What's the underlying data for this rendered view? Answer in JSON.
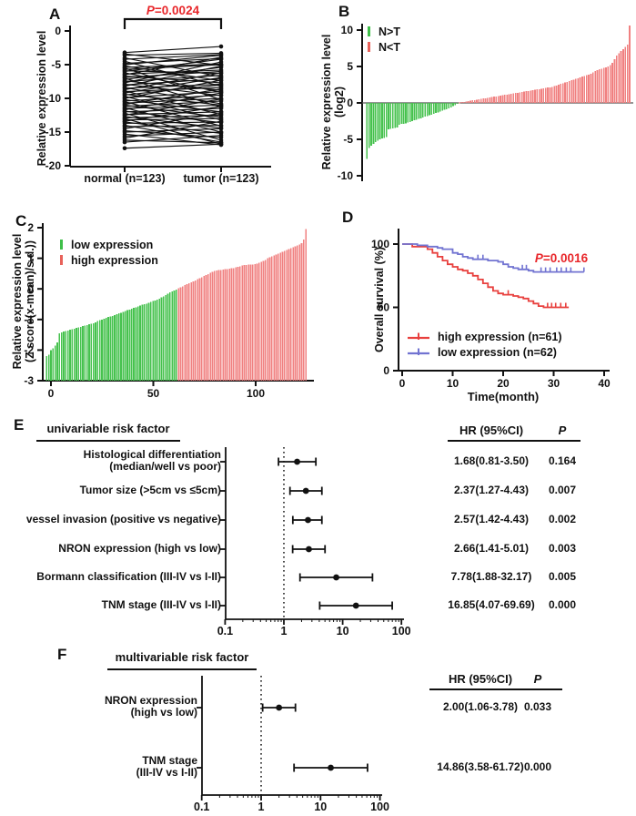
{
  "chart_data": [
    {
      "panel": "A",
      "type": "paired-line",
      "p_italic": "P",
      "p_value": "=0.0024",
      "p_color": "#e8262a",
      "ylabel": "Relative expression level",
      "ylim": [
        -20,
        0
      ],
      "yticks": [
        0,
        -5,
        -10,
        -15,
        -20
      ],
      "categories": [
        "normal (n=123)",
        "tumor (n=123)"
      ],
      "point_color": "#111111",
      "pairs": [
        [
          -3.2,
          -2.3
        ],
        [
          -3.4,
          -5.1
        ],
        [
          -3.6,
          -3.3
        ],
        [
          -4.0,
          -6.8
        ],
        [
          -4.2,
          -3.5
        ],
        [
          -4.5,
          -8.2
        ],
        [
          -4.8,
          -4.1
        ],
        [
          -5.0,
          -3.6
        ],
        [
          -5.2,
          -7.4
        ],
        [
          -5.4,
          -4.9
        ],
        [
          -5.5,
          -10.2
        ],
        [
          -5.7,
          -5.0
        ],
        [
          -5.9,
          -6.3
        ],
        [
          -6.0,
          -4.2
        ],
        [
          -6.2,
          -9.1
        ],
        [
          -6.4,
          -5.8
        ],
        [
          -6.5,
          -3.9
        ],
        [
          -6.7,
          -7.7
        ],
        [
          -6.9,
          -6.0
        ],
        [
          -7.0,
          -11.3
        ],
        [
          -7.2,
          -5.4
        ],
        [
          -7.4,
          -8.8
        ],
        [
          -7.5,
          -6.6
        ],
        [
          -7.7,
          -4.6
        ],
        [
          -7.9,
          -9.6
        ],
        [
          -8.0,
          -7.1
        ],
        [
          -8.2,
          -5.2
        ],
        [
          -8.4,
          -10.8
        ],
        [
          -8.5,
          -7.9
        ],
        [
          -8.7,
          -6.2
        ],
        [
          -8.9,
          -12.4
        ],
        [
          -9.0,
          -8.4
        ],
        [
          -9.2,
          -6.9
        ],
        [
          -9.4,
          -11.0
        ],
        [
          -9.5,
          -8.0
        ],
        [
          -9.7,
          -13.2
        ],
        [
          -9.9,
          -9.0
        ],
        [
          -10.0,
          -7.3
        ],
        [
          -10.2,
          -12.0
        ],
        [
          -10.4,
          -9.5
        ],
        [
          -10.5,
          -14.1
        ],
        [
          -10.7,
          -10.0
        ],
        [
          -10.9,
          -8.6
        ],
        [
          -11.0,
          -12.8
        ],
        [
          -11.2,
          -10.4
        ],
        [
          -11.4,
          -15.0
        ],
        [
          -11.5,
          -11.0
        ],
        [
          -11.7,
          -9.2
        ],
        [
          -11.9,
          -13.6
        ],
        [
          -12.0,
          -11.5
        ],
        [
          -12.2,
          -16.2
        ],
        [
          -12.4,
          -12.0
        ],
        [
          -12.5,
          -10.1
        ],
        [
          -12.7,
          -14.4
        ],
        [
          -12.9,
          -12.5
        ],
        [
          -13.0,
          -16.8
        ],
        [
          -13.2,
          -13.0
        ],
        [
          -13.4,
          -11.2
        ],
        [
          -13.5,
          -15.2
        ],
        [
          -13.7,
          -13.5
        ],
        [
          -14.0,
          -16.5
        ],
        [
          -14.2,
          -14.0
        ],
        [
          -14.5,
          -12.2
        ],
        [
          -14.8,
          -15.8
        ],
        [
          -15.0,
          -14.5
        ],
        [
          -15.3,
          -16.9
        ],
        [
          -15.6,
          -15.0
        ],
        [
          -15.9,
          -13.4
        ],
        [
          -16.2,
          -16.6
        ],
        [
          -16.5,
          -15.5
        ],
        [
          -17.4,
          -16.8
        ]
      ]
    },
    {
      "panel": "B",
      "type": "bar",
      "ylabel_lines": [
        "Relative expression level",
        "(log2)"
      ],
      "ylim": [
        -10,
        11
      ],
      "yticks": [
        10,
        5,
        0,
        -5,
        -10
      ],
      "legend": [
        {
          "label": "N>T",
          "color": "#3fbf49"
        },
        {
          "label": "N<T",
          "color": "#e8625a"
        }
      ],
      "negative_color": "#46c24e",
      "positive_color": "#f08080",
      "split_index": 43,
      "values": [
        -7.7,
        -6.2,
        -5.9,
        -5.6,
        -5.4,
        -5.2,
        -5.0,
        -4.9,
        -4.8,
        -4.7,
        -3.6,
        -3.55,
        -3.5,
        -3.45,
        -3.4,
        -3.0,
        -2.9,
        -2.85,
        -2.8,
        -2.7,
        -2.6,
        -2.5,
        -2.4,
        -2.3,
        -2.2,
        -2.1,
        -2.0,
        -1.9,
        -1.8,
        -1.7,
        -1.6,
        -1.5,
        -1.4,
        -1.3,
        -1.2,
        -1.05,
        -0.95,
        -0.85,
        -0.75,
        -0.6,
        -0.45,
        -0.3,
        -0.15,
        0.05,
        0.1,
        0.15,
        0.2,
        0.25,
        0.3,
        0.35,
        0.4,
        0.45,
        0.5,
        0.55,
        0.6,
        0.65,
        0.7,
        0.75,
        0.8,
        0.85,
        0.9,
        0.95,
        1.0,
        1.05,
        1.1,
        1.15,
        1.2,
        1.25,
        1.3,
        1.35,
        1.4,
        1.45,
        1.5,
        1.55,
        1.6,
        1.65,
        1.7,
        1.75,
        1.8,
        1.85,
        1.9,
        1.95,
        2.0,
        2.05,
        2.1,
        2.15,
        2.2,
        2.3,
        2.4,
        2.5,
        2.6,
        2.7,
        2.8,
        2.9,
        3.0,
        3.1,
        3.2,
        3.3,
        3.4,
        3.5,
        3.6,
        3.7,
        3.8,
        3.9,
        4.0,
        4.2,
        4.4,
        4.5,
        4.6,
        4.7,
        4.8,
        4.9,
        5.0,
        5.2,
        5.5,
        6.0,
        6.5,
        6.8,
        7.1,
        7.4,
        7.7,
        8.0,
        10.6
      ]
    },
    {
      "panel": "C",
      "type": "bar",
      "ylabel_lines": [
        "Relative expression level",
        "(Z score(x-mean)/s.d.))"
      ],
      "ylim": [
        -3,
        2
      ],
      "yticks": [
        2,
        1,
        0,
        -1,
        -2,
        -3
      ],
      "xticks": [
        0,
        50,
        100
      ],
      "baseline": -3,
      "legend": [
        {
          "label": "low expression",
          "color": "#3fbf49"
        },
        {
          "label": "high expression",
          "color": "#e8625a"
        }
      ],
      "negative_color": "#46c24e",
      "positive_color": "#f08080",
      "split_index": 62,
      "values": [
        -2.2,
        -2.15,
        -2.0,
        -1.95,
        -1.85,
        -1.75,
        -1.45,
        -1.42,
        -1.4,
        -1.38,
        -1.36,
        -1.34,
        -1.32,
        -1.3,
        -1.28,
        -1.26,
        -1.24,
        -1.22,
        -1.2,
        -1.18,
        -1.16,
        -1.14,
        -1.12,
        -1.1,
        -1.05,
        -1.02,
        -1.0,
        -0.98,
        -0.95,
        -0.92,
        -0.9,
        -0.88,
        -0.85,
        -0.82,
        -0.8,
        -0.78,
        -0.75,
        -0.72,
        -0.7,
        -0.68,
        -0.65,
        -0.62,
        -0.6,
        -0.58,
        -0.55,
        -0.52,
        -0.5,
        -0.48,
        -0.45,
        -0.42,
        -0.4,
        -0.38,
        -0.35,
        -0.32,
        -0.28,
        -0.25,
        -0.2,
        -0.16,
        -0.12,
        -0.08,
        -0.05,
        -0.02,
        0.02,
        0.05,
        0.08,
        0.12,
        0.15,
        0.18,
        0.22,
        0.25,
        0.28,
        0.32,
        0.35,
        0.38,
        0.42,
        0.45,
        0.48,
        0.52,
        0.55,
        0.58,
        0.6,
        0.61,
        0.62,
        0.63,
        0.64,
        0.65,
        0.66,
        0.67,
        0.68,
        0.7,
        0.72,
        0.74,
        0.76,
        0.78,
        0.78,
        0.79,
        0.8,
        0.8,
        0.81,
        0.82,
        0.85,
        0.88,
        0.92,
        0.95,
        1.0,
        1.03,
        1.06,
        1.09,
        1.12,
        1.15,
        1.18,
        1.21,
        1.24,
        1.27,
        1.3,
        1.33,
        1.36,
        1.39,
        1.42,
        1.45,
        1.5,
        1.62,
        1.95
      ]
    },
    {
      "panel": "D",
      "type": "line",
      "subtype": "kaplan-meier",
      "p_italic": "P",
      "p_value": "=0.0016",
      "p_color": "#e8262a",
      "xlabel": "Time(month)",
      "ylabel": "Overall survival (%)",
      "xlim": [
        0,
        40
      ],
      "xticks": [
        0,
        10,
        20,
        30,
        40
      ],
      "ylim": [
        0,
        100
      ],
      "yticks": [
        0,
        50,
        100
      ],
      "series": [
        {
          "name": "high expression (n=61)",
          "color": "#e8403e",
          "steps": [
            [
              0,
              100
            ],
            [
              2,
              100
            ],
            [
              2,
              98
            ],
            [
              5,
              98
            ],
            [
              5,
              96
            ],
            [
              6,
              96
            ],
            [
              6,
              93
            ],
            [
              7,
              93
            ],
            [
              7,
              90
            ],
            [
              8,
              90
            ],
            [
              8,
              87
            ],
            [
              9,
              87
            ],
            [
              9,
              84
            ],
            [
              10,
              84
            ],
            [
              10,
              82
            ],
            [
              11,
              82
            ],
            [
              11,
              80
            ],
            [
              12,
              80
            ],
            [
              12,
              79
            ],
            [
              13,
              79
            ],
            [
              13,
              77
            ],
            [
              14,
              77
            ],
            [
              14,
              75
            ],
            [
              15,
              75
            ],
            [
              15,
              72
            ],
            [
              16,
              72
            ],
            [
              16,
              69
            ],
            [
              17,
              69
            ],
            [
              17,
              66
            ],
            [
              18,
              66
            ],
            [
              18,
              63
            ],
            [
              19,
              63
            ],
            [
              19,
              61
            ],
            [
              20,
              61
            ],
            [
              20,
              60
            ],
            [
              22,
              60
            ],
            [
              22,
              59
            ],
            [
              23,
              59
            ],
            [
              23,
              58
            ],
            [
              24,
              58
            ],
            [
              24,
              57
            ],
            [
              25,
              57
            ],
            [
              25,
              55
            ],
            [
              26,
              55
            ],
            [
              26,
              53
            ],
            [
              27,
              53
            ],
            [
              27,
              51
            ],
            [
              28,
              51
            ],
            [
              28,
              50
            ],
            [
              33,
              50
            ]
          ],
          "censors": [
            [
              21,
              60
            ],
            [
              28.8,
              50
            ],
            [
              29.6,
              50
            ],
            [
              30.4,
              50
            ],
            [
              31.4,
              50
            ],
            [
              32.4,
              50
            ]
          ]
        },
        {
          "name": "low expression (n=62)",
          "color": "#7173d1",
          "steps": [
            [
              0,
              100
            ],
            [
              3,
              100
            ],
            [
              3,
              99
            ],
            [
              5,
              99
            ],
            [
              5,
              98
            ],
            [
              7,
              98
            ],
            [
              7,
              97
            ],
            [
              8,
              97
            ],
            [
              8,
              96
            ],
            [
              10,
              96
            ],
            [
              10,
              93
            ],
            [
              11,
              93
            ],
            [
              11,
              92
            ],
            [
              12,
              92
            ],
            [
              12,
              90
            ],
            [
              13,
              90
            ],
            [
              13,
              89
            ],
            [
              14,
              89
            ],
            [
              14,
              88
            ],
            [
              17,
              88
            ],
            [
              17,
              87
            ],
            [
              19,
              87
            ],
            [
              19,
              86
            ],
            [
              20,
              86
            ],
            [
              20,
              84
            ],
            [
              21,
              84
            ],
            [
              21,
              82
            ],
            [
              22,
              82
            ],
            [
              22,
              81
            ],
            [
              23,
              81
            ],
            [
              23,
              80
            ],
            [
              25,
              80
            ],
            [
              25,
              79
            ],
            [
              26,
              79
            ],
            [
              26,
              78
            ],
            [
              36,
              78
            ]
          ],
          "censors": [
            [
              15,
              88
            ],
            [
              16,
              88
            ],
            [
              23.8,
              80
            ],
            [
              24.6,
              80
            ],
            [
              27.5,
              78
            ],
            [
              28.4,
              78
            ],
            [
              29.3,
              78
            ],
            [
              30.6,
              78
            ],
            [
              31.5,
              78
            ],
            [
              32.5,
              78
            ],
            [
              33.4,
              78
            ],
            [
              36,
              78
            ]
          ]
        }
      ]
    },
    {
      "panel": "E",
      "type": "forest",
      "header": "univariable risk factor",
      "col_hr": "HR (95%CI)",
      "col_p_italic": "P",
      "xticks": [
        0.1,
        1,
        10,
        100
      ],
      "ref_line": 1,
      "marker_color": "#111111",
      "rows": [
        {
          "label_lines": [
            "Histological differentiation",
            "(median/well vs poor)"
          ],
          "hr": 1.68,
          "lo": 0.81,
          "hi": 3.5,
          "hr_text": "1.68(0.81-3.50)",
          "p_text": "0.164"
        },
        {
          "label_lines": [
            "Tumor size  (>5cm vs ≤5cm)"
          ],
          "hr": 2.37,
          "lo": 1.27,
          "hi": 4.43,
          "hr_text": "2.37(1.27-4.43)",
          "p_text": "0.007"
        },
        {
          "label_lines": [
            "vessel invasion (positive vs negative)"
          ],
          "hr": 2.57,
          "lo": 1.42,
          "hi": 4.43,
          "hr_text": "2.57(1.42-4.43)",
          "p_text": "0.002"
        },
        {
          "label_lines": [
            "NRON expression (high vs low)"
          ],
          "hr": 2.66,
          "lo": 1.41,
          "hi": 5.01,
          "hr_text": "2.66(1.41-5.01)",
          "p_text": "0.003"
        },
        {
          "label_lines": [
            "Bormann classification (III-IV vs I-II)"
          ],
          "hr": 7.78,
          "lo": 1.88,
          "hi": 32.17,
          "hr_text": "7.78(1.88-32.17)",
          "p_text": "0.005"
        },
        {
          "label_lines": [
            "TNM stage (III-IV vs I-II)"
          ],
          "hr": 16.85,
          "lo": 4.07,
          "hi": 69.69,
          "hr_text": "16.85(4.07-69.69)",
          "p_text": "0.000"
        }
      ]
    },
    {
      "panel": "F",
      "type": "forest",
      "header": "multivariable risk factor",
      "col_hr": "HR (95%CI)",
      "col_p_italic": "P",
      "xticks": [
        0.1,
        1,
        10,
        100
      ],
      "ref_line": 1,
      "marker_color": "#111111",
      "rows": [
        {
          "label_lines": [
            "NRON expression",
            "(high vs low)"
          ],
          "hr": 2.0,
          "lo": 1.06,
          "hi": 3.78,
          "hr_text": "2.00(1.06-3.78)",
          "p_text": "0.033"
        },
        {
          "label_lines": [
            "TNM stage",
            "(III-IV vs I-II)"
          ],
          "hr": 14.86,
          "lo": 3.58,
          "hi": 61.72,
          "hr_text": "14.86(3.58-61.72)",
          "p_text": "0.000"
        }
      ]
    }
  ]
}
